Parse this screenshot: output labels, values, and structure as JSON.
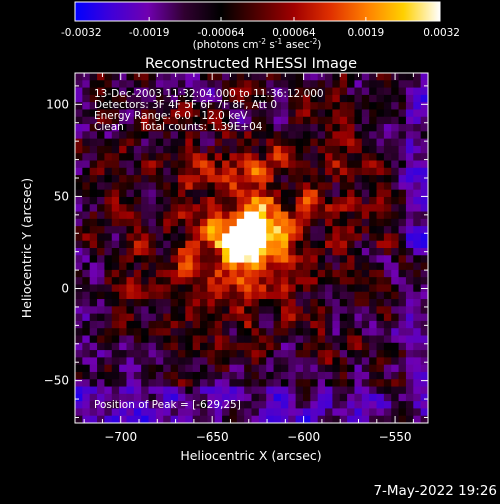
{
  "colorbar": {
    "ticks": [
      "-0.0032",
      "-0.0019",
      "-0.00064",
      "0.00064",
      "0.0019",
      "0.0032"
    ],
    "unit_main": "(photons cm",
    "unit_sup1": "-2",
    "unit_mid1": " s",
    "unit_sup2": "-1",
    "unit_mid2": " asec",
    "unit_sup3": "-2",
    "unit_end": ")",
    "colors": [
      "#0000ff",
      "#4000d8",
      "#7000b0",
      "#300030",
      "#000000",
      "#500000",
      "#a00000",
      "#e03000",
      "#ff8000",
      "#ffd000",
      "#ffffff"
    ]
  },
  "chart_data": {
    "type": "heatmap",
    "title": "Reconstructed RHESSI Image",
    "xlabel": "Heliocentric X (arcsec)",
    "ylabel": "Heliocentric Y (arcsec)",
    "xlim": [
      -725,
      -532
    ],
    "ylim": [
      -73,
      117
    ],
    "xticks": [
      -700,
      -650,
      -600,
      -550
    ],
    "yticks": [
      -50,
      0,
      50,
      100
    ],
    "xtick_labels": [
      "−700",
      "−650",
      "−600",
      "−550"
    ],
    "ytick_labels": [
      "−50",
      "0",
      "50",
      "100"
    ],
    "color_range": [
      -0.0032,
      0.0032
    ],
    "peak": [
      -629,
      25
    ],
    "annotations": [
      "13-Dec-2003 11:32:04.000 to 11:36:12.000",
      "Detectors: 3F 4F 5F 6F 7F 8F, Att 0",
      "Energy Range: 6.0 - 12.0 keV",
      "Clean     Total counts: 1.39E+04"
    ],
    "peak_label": "Position of Peak = [-629,25]"
  },
  "footer": {
    "date": "7-May-2022 19:26"
  }
}
